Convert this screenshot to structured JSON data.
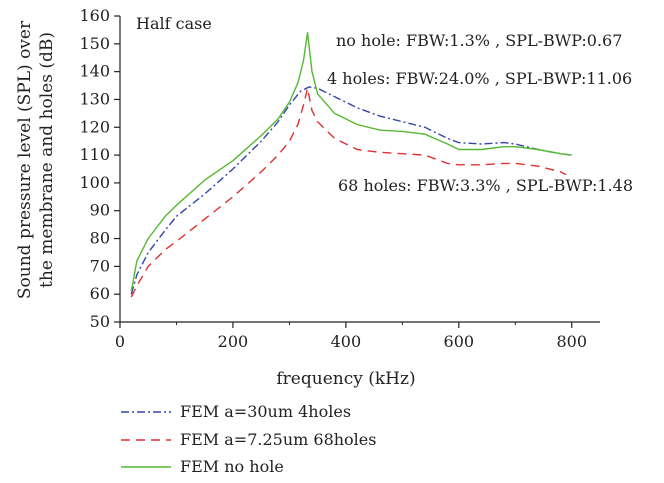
{
  "chart_data": {
    "type": "line",
    "title": "",
    "panel_label": "Half case",
    "xlabel": "frequency (kHz)",
    "ylabel_lines": [
      "Sound pressure level (SPL) over",
      "the membrane and holes (dB)"
    ],
    "xlim": [
      0,
      850
    ],
    "ylim": [
      50,
      160
    ],
    "xticks": [
      0,
      200,
      400,
      600,
      800
    ],
    "yticks": [
      50,
      60,
      70,
      80,
      90,
      100,
      110,
      120,
      130,
      140,
      150,
      160
    ],
    "grid": false,
    "legend_position": "bottom-left, below plot",
    "series": [
      {
        "name": "FEM a=30um 4holes",
        "color": "#3344aa",
        "dash": "dashdot",
        "x": [
          20,
          30,
          50,
          80,
          100,
          150,
          200,
          250,
          280,
          300,
          320,
          335,
          350,
          380,
          420,
          460,
          500,
          540,
          580,
          600,
          640,
          680,
          700,
          740,
          780,
          800
        ],
        "y": [
          60,
          67,
          75,
          83,
          88,
          96,
          105,
          115,
          122,
          128,
          133,
          134.5,
          134,
          131,
          127,
          124,
          122,
          120,
          116,
          114.5,
          114,
          114.5,
          114,
          112,
          110.5,
          110
        ]
      },
      {
        "name": "FEM a=7.25um 68holes",
        "color": "#e03030",
        "dash": "dashed",
        "x": [
          20,
          30,
          50,
          80,
          100,
          150,
          200,
          250,
          280,
          300,
          315,
          325,
          332,
          340,
          350,
          380,
          420,
          460,
          500,
          540,
          580,
          600,
          640,
          680,
          700,
          740,
          780,
          790
        ],
        "y": [
          59,
          63,
          70,
          76,
          79,
          87,
          95,
          104,
          110,
          115,
          121,
          128,
          134,
          126,
          122,
          116,
          112,
          111,
          110.5,
          110,
          107,
          106.5,
          106.5,
          107,
          107,
          106,
          104,
          103
        ]
      },
      {
        "name": "FEM no hole",
        "color": "#55b833",
        "dash": "solid",
        "x": [
          20,
          30,
          50,
          80,
          100,
          150,
          200,
          250,
          280,
          300,
          315,
          325,
          332,
          340,
          350,
          380,
          420,
          460,
          500,
          540,
          580,
          600,
          640,
          680,
          700,
          740,
          780,
          800
        ],
        "y": [
          61,
          72,
          80,
          88,
          92,
          101,
          108,
          117,
          123,
          129,
          136,
          144,
          154,
          140,
          132,
          125,
          121,
          119,
          118.5,
          117.5,
          114,
          112,
          112,
          113,
          113,
          112,
          110.5,
          110
        ]
      }
    ],
    "annotations": [
      {
        "text": "no hole: FBW:1.3% , SPL-BWP:0.67",
        "color": "#55b833"
      },
      {
        "text": "4 holes: FBW:24.0% , SPL-BWP:11.06",
        "color": "#3344aa"
      },
      {
        "text": "68 holes: FBW:3.3% , SPL-BWP:1.48",
        "color": "#e03030"
      }
    ]
  }
}
